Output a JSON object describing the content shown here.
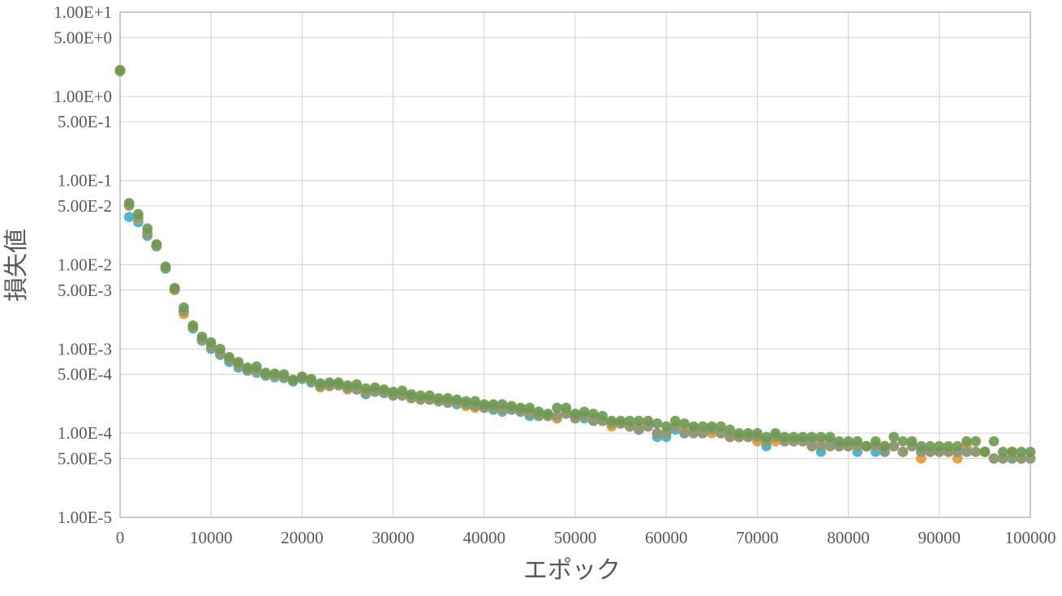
{
  "chart_data": {
    "type": "scatter",
    "title": "",
    "xlabel": "エポック",
    "ylabel": "損失値",
    "y_scale": "log",
    "xlim": [
      0,
      100000
    ],
    "ylim": [
      1e-05,
      10
    ],
    "grid": true,
    "legend": "none",
    "x_ticks": [
      {
        "value": 0,
        "label": "0"
      },
      {
        "value": 10000,
        "label": "10000"
      },
      {
        "value": 20000,
        "label": "20000"
      },
      {
        "value": 30000,
        "label": "30000"
      },
      {
        "value": 40000,
        "label": "40000"
      },
      {
        "value": 50000,
        "label": "50000"
      },
      {
        "value": 60000,
        "label": "60000"
      },
      {
        "value": 70000,
        "label": "70000"
      },
      {
        "value": 80000,
        "label": "80000"
      },
      {
        "value": 90000,
        "label": "90000"
      },
      {
        "value": 100000,
        "label": "100000"
      }
    ],
    "y_ticks": [
      {
        "value": 10,
        "label": "1.00E+1"
      },
      {
        "value": 5,
        "label": "5.00E+0"
      },
      {
        "value": 1,
        "label": "1.00E+0"
      },
      {
        "value": 0.5,
        "label": "5.00E-1"
      },
      {
        "value": 0.1,
        "label": "1.00E-1"
      },
      {
        "value": 0.05,
        "label": "5.00E-2"
      },
      {
        "value": 0.01,
        "label": "1.00E-2"
      },
      {
        "value": 0.005,
        "label": "5.00E-3"
      },
      {
        "value": 0.001,
        "label": "1.00E-3"
      },
      {
        "value": 0.0005,
        "label": "5.00E-4"
      },
      {
        "value": 0.0001,
        "label": "1.00E-4"
      },
      {
        "value": 5e-05,
        "label": "5.00E-5"
      },
      {
        "value": 1e-05,
        "label": "1.00E-5"
      }
    ],
    "series": [
      {
        "color": "#3fb0cc",
        "x": [
          0,
          1000,
          2000,
          3000,
          4000,
          5000,
          6000,
          7000,
          8000,
          9000,
          10000,
          11000,
          12000,
          13000,
          14000,
          15000,
          16000,
          17000,
          18000,
          19000,
          20000,
          21000,
          22000,
          23000,
          24000,
          25000,
          26000,
          27000,
          28000,
          29000,
          30000,
          31000,
          32000,
          33000,
          34000,
          35000,
          36000,
          37000,
          38000,
          39000,
          40000,
          41000,
          42000,
          43000,
          44000,
          45000,
          46000,
          47000,
          48000,
          49000,
          50000,
          51000,
          52000,
          53000,
          54000,
          55000,
          56000,
          57000,
          58000,
          59000,
          60000,
          61000,
          62000,
          63000,
          64000,
          65000,
          66000,
          67000,
          68000,
          69000,
          70000,
          71000,
          72000,
          73000,
          74000,
          75000,
          76000,
          77000,
          78000,
          79000,
          80000,
          81000,
          82000,
          83000,
          84000,
          85000,
          86000,
          87000,
          88000,
          89000,
          90000,
          91000,
          92000,
          93000,
          94000,
          95000,
          96000,
          97000,
          98000,
          99000,
          100000
        ],
        "y": [
          2.0,
          0.037,
          0.032,
          0.022,
          0.0165,
          0.009,
          0.0051,
          0.0028,
          0.00175,
          0.00125,
          0.001,
          0.00085,
          0.0007,
          0.0006,
          0.00055,
          0.00052,
          0.00048,
          0.00046,
          0.00045,
          0.00041,
          0.00044,
          0.0004,
          0.00036,
          0.00037,
          0.00038,
          0.00034,
          0.00033,
          0.00029,
          0.00031,
          0.0003,
          0.00028,
          0.00028,
          0.00027,
          0.00026,
          0.00025,
          0.00024,
          0.00023,
          0.00022,
          0.00022,
          0.00021,
          0.0002,
          0.00019,
          0.00018,
          0.00019,
          0.00018,
          0.00016,
          0.00016,
          0.00016,
          0.00015,
          0.00017,
          0.00016,
          0.00015,
          0.00014,
          0.00014,
          0.00013,
          0.00013,
          0.00012,
          0.00011,
          0.00012,
          9e-05,
          9e-05,
          0.00011,
          0.0001,
          0.00011,
          0.0001,
          0.00011,
          0.0001,
          9e-05,
          9e-05,
          9e-05,
          9e-05,
          7e-05,
          9e-05,
          8e-05,
          8e-05,
          8e-05,
          8e-05,
          6e-05,
          8e-05,
          7e-05,
          7e-05,
          6e-05,
          7e-05,
          6e-05,
          6e-05,
          7e-05,
          6e-05,
          7e-05,
          6e-05,
          6e-05,
          6e-05,
          6e-05,
          6e-05,
          6e-05,
          6e-05,
          6e-05,
          5e-05,
          5e-05,
          5e-05,
          5e-05,
          5e-05
        ]
      },
      {
        "color": "#e89a2c",
        "x": [
          0,
          1000,
          2000,
          3000,
          4000,
          5000,
          6000,
          7000,
          8000,
          9000,
          10000,
          11000,
          12000,
          13000,
          14000,
          15000,
          16000,
          17000,
          18000,
          19000,
          20000,
          21000,
          22000,
          23000,
          24000,
          25000,
          26000,
          27000,
          28000,
          29000,
          30000,
          31000,
          32000,
          33000,
          34000,
          35000,
          36000,
          37000,
          38000,
          39000,
          40000,
          41000,
          42000,
          43000,
          44000,
          45000,
          46000,
          47000,
          48000,
          49000,
          50000,
          51000,
          52000,
          53000,
          54000,
          55000,
          56000,
          57000,
          58000,
          59000,
          60000,
          61000,
          62000,
          63000,
          64000,
          65000,
          66000,
          67000,
          68000,
          69000,
          70000,
          71000,
          72000,
          73000,
          74000,
          75000,
          76000,
          77000,
          78000,
          79000,
          80000,
          81000,
          82000,
          83000,
          84000,
          85000,
          86000,
          87000,
          88000,
          89000,
          90000,
          91000,
          92000,
          93000,
          94000,
          95000,
          96000,
          97000,
          98000,
          99000,
          100000
        ],
        "y": [
          2.05,
          0.05,
          0.035,
          0.024,
          0.017,
          0.0092,
          0.005,
          0.0026,
          0.0018,
          0.0013,
          0.0011,
          0.0009,
          0.00075,
          0.00065,
          0.00058,
          0.00055,
          0.0005,
          0.00048,
          0.00047,
          0.00042,
          0.00045,
          0.00042,
          0.00035,
          0.00036,
          0.00037,
          0.00033,
          0.00034,
          0.00031,
          0.00032,
          0.00031,
          0.00029,
          0.00029,
          0.00026,
          0.00025,
          0.00025,
          0.00024,
          0.00024,
          0.00023,
          0.00021,
          0.0002,
          0.00021,
          0.0002,
          0.00019,
          0.0002,
          0.00019,
          0.00018,
          0.00017,
          0.00016,
          0.00015,
          0.00018,
          0.00015,
          0.00016,
          0.00015,
          0.00014,
          0.00012,
          0.00013,
          0.00012,
          0.00012,
          0.00012,
          0.0001,
          0.0001,
          0.00012,
          0.00011,
          0.0001,
          0.0001,
          0.0001,
          0.0001,
          9e-05,
          9e-05,
          9e-05,
          8e-05,
          8e-05,
          8e-05,
          8e-05,
          8e-05,
          8e-05,
          7e-05,
          8e-05,
          7e-05,
          7e-05,
          7e-05,
          7e-05,
          7e-05,
          7e-05,
          7e-05,
          7e-05,
          6e-05,
          7e-05,
          5e-05,
          6e-05,
          6e-05,
          6e-05,
          5e-05,
          7e-05,
          6e-05,
          6e-05,
          5e-05,
          5e-05,
          6e-05,
          5e-05,
          5e-05
        ]
      },
      {
        "color": "#8c9a78",
        "x": [
          0,
          1000,
          2000,
          3000,
          4000,
          5000,
          6000,
          7000,
          8000,
          9000,
          10000,
          11000,
          12000,
          13000,
          14000,
          15000,
          16000,
          17000,
          18000,
          19000,
          20000,
          21000,
          22000,
          23000,
          24000,
          25000,
          26000,
          27000,
          28000,
          29000,
          30000,
          31000,
          32000,
          33000,
          34000,
          35000,
          36000,
          37000,
          38000,
          39000,
          40000,
          41000,
          42000,
          43000,
          44000,
          45000,
          46000,
          47000,
          48000,
          49000,
          50000,
          51000,
          52000,
          53000,
          54000,
          55000,
          56000,
          57000,
          58000,
          59000,
          60000,
          61000,
          62000,
          63000,
          64000,
          65000,
          66000,
          67000,
          68000,
          69000,
          70000,
          71000,
          72000,
          73000,
          74000,
          75000,
          76000,
          77000,
          78000,
          79000,
          80000,
          81000,
          82000,
          83000,
          84000,
          85000,
          86000,
          87000,
          88000,
          89000,
          90000,
          91000,
          92000,
          93000,
          94000,
          95000,
          96000,
          97000,
          98000,
          99000,
          100000
        ],
        "y": [
          2.0,
          0.051,
          0.036,
          0.023,
          0.0168,
          0.0091,
          0.0051,
          0.0028,
          0.0018,
          0.0013,
          0.00105,
          0.00088,
          0.00074,
          0.00064,
          0.00056,
          0.00056,
          0.00049,
          0.00049,
          0.00046,
          0.00042,
          0.00045,
          0.00041,
          0.00036,
          0.00037,
          0.00037,
          0.00034,
          0.00033,
          0.0003,
          0.00031,
          0.0003,
          0.00028,
          0.00028,
          0.00026,
          0.00025,
          0.00025,
          0.00024,
          0.00023,
          0.00023,
          0.00022,
          0.00021,
          0.0002,
          0.0002,
          0.00019,
          0.00019,
          0.00018,
          0.00017,
          0.00016,
          0.00016,
          0.00016,
          0.00017,
          0.00015,
          0.00016,
          0.00014,
          0.00014,
          0.00013,
          0.00013,
          0.00012,
          0.00011,
          0.00012,
          0.0001,
          0.0001,
          0.00012,
          0.0001,
          0.0001,
          0.0001,
          0.00011,
          0.0001,
          9e-05,
          9e-05,
          9e-05,
          9e-05,
          8e-05,
          9e-05,
          8e-05,
          8e-05,
          8e-05,
          7e-05,
          7e-05,
          7e-05,
          7e-05,
          7e-05,
          7e-05,
          7e-05,
          7e-05,
          6e-05,
          7e-05,
          6e-05,
          7e-05,
          6e-05,
          6e-05,
          6e-05,
          6e-05,
          6e-05,
          6e-05,
          6e-05,
          6e-05,
          5e-05,
          5e-05,
          5e-05,
          5e-05,
          5e-05
        ]
      },
      {
        "color": "#6f9a52",
        "x": [
          0,
          1000,
          2000,
          3000,
          4000,
          5000,
          6000,
          7000,
          8000,
          9000,
          10000,
          11000,
          12000,
          13000,
          14000,
          15000,
          16000,
          17000,
          18000,
          19000,
          20000,
          21000,
          22000,
          23000,
          24000,
          25000,
          26000,
          27000,
          28000,
          29000,
          30000,
          31000,
          32000,
          33000,
          34000,
          35000,
          36000,
          37000,
          38000,
          39000,
          40000,
          41000,
          42000,
          43000,
          44000,
          45000,
          46000,
          47000,
          48000,
          49000,
          50000,
          51000,
          52000,
          53000,
          54000,
          55000,
          56000,
          57000,
          58000,
          59000,
          60000,
          61000,
          62000,
          63000,
          64000,
          65000,
          66000,
          67000,
          68000,
          69000,
          70000,
          71000,
          72000,
          73000,
          74000,
          75000,
          76000,
          77000,
          78000,
          79000,
          80000,
          81000,
          82000,
          83000,
          84000,
          85000,
          86000,
          87000,
          88000,
          89000,
          90000,
          91000,
          92000,
          93000,
          94000,
          95000,
          96000,
          97000,
          98000,
          99000,
          100000
        ],
        "y": [
          2.05,
          0.054,
          0.04,
          0.027,
          0.0175,
          0.0095,
          0.0053,
          0.0031,
          0.0019,
          0.0014,
          0.0012,
          0.001,
          0.0008,
          0.0007,
          0.0006,
          0.00062,
          0.00052,
          0.00051,
          0.0005,
          0.00043,
          0.00047,
          0.00044,
          0.00039,
          0.0004,
          0.0004,
          0.00037,
          0.00038,
          0.00034,
          0.00035,
          0.00033,
          0.00031,
          0.00032,
          0.00029,
          0.00028,
          0.00028,
          0.00026,
          0.00026,
          0.00025,
          0.00024,
          0.00024,
          0.00022,
          0.00022,
          0.00022,
          0.00021,
          0.0002,
          0.0002,
          0.00018,
          0.00017,
          0.0002,
          0.0002,
          0.00017,
          0.00018,
          0.00017,
          0.00016,
          0.00014,
          0.00014,
          0.00014,
          0.00014,
          0.00014,
          0.00013,
          0.00012,
          0.00014,
          0.00013,
          0.00012,
          0.00012,
          0.00012,
          0.00012,
          0.00011,
          0.0001,
          0.0001,
          0.0001,
          9e-05,
          0.0001,
          9e-05,
          9e-05,
          9e-05,
          9e-05,
          9e-05,
          9e-05,
          8e-05,
          8e-05,
          8e-05,
          7e-05,
          8e-05,
          7e-05,
          9e-05,
          8e-05,
          8e-05,
          7e-05,
          7e-05,
          7e-05,
          7e-05,
          7e-05,
          8e-05,
          8e-05,
          6e-05,
          8e-05,
          6e-05,
          6e-05,
          6e-05,
          6e-05
        ]
      }
    ]
  }
}
